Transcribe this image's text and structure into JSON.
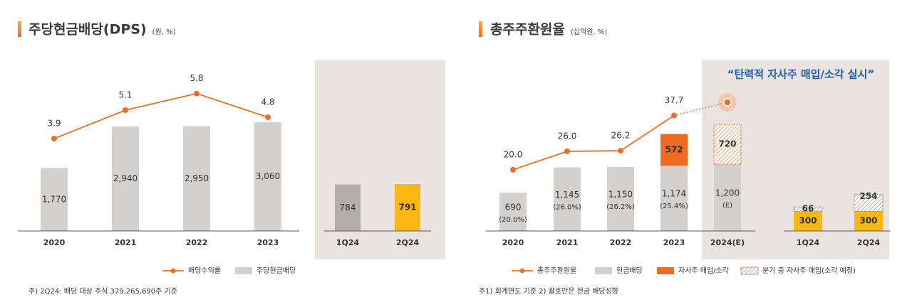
{
  "chart_data": [
    {
      "type": "bar",
      "title": "주당현금배당(DPS)",
      "unit": "(원, %)",
      "categories": [
        "2020",
        "2021",
        "2022",
        "2023"
      ],
      "ylim": [
        0,
        5000
      ],
      "y2lim": [
        0,
        7.5
      ],
      "series": [
        {
          "name": "배당수익률",
          "type": "line",
          "axis": "y2",
          "color": "#e8702a",
          "values": [
            3.9,
            5.1,
            5.8,
            4.8
          ]
        },
        {
          "name": "주당현금배당",
          "color": "#d3d0cd",
          "values": [
            1770,
            2940,
            2950,
            3060
          ],
          "value_labels": [
            "1,770",
            "2,940",
            "2,950",
            "3,060"
          ]
        }
      ],
      "quarter": {
        "categories": [
          "1Q24",
          "2Q24"
        ],
        "ylim": [
          0,
          3000
        ],
        "series": [
          {
            "values": [
              784,
              791
            ],
            "value_labels": [
              "784",
              "791"
            ],
            "colors": [
              "#b3aea9",
              "#fbb812"
            ]
          }
        ]
      },
      "footnote": "주) 2Q24: 배당 대상 주식 379,265,690주 기준"
    },
    {
      "type": "bar",
      "title": "총주주환원율",
      "unit": "(십억원, %)",
      "annotation": "“탄력적 자사주 매입/소각 실시”",
      "categories": [
        "2020",
        "2021",
        "2022",
        "2023",
        "2024(E)"
      ],
      "ylim": [
        0,
        3200
      ],
      "y2lim": [
        0,
        58
      ],
      "series": [
        {
          "name": "총주주환원율",
          "type": "line",
          "axis": "y2",
          "color": "#e8702a",
          "dotted_from": 3,
          "values": [
            20,
            26,
            26.2,
            37.7,
            42
          ],
          "value_labels": [
            "20.0",
            "26.0",
            "26.2",
            "37.7",
            null
          ]
        },
        {
          "name": "현금배당",
          "color": "#d3d0cd",
          "values": [
            690,
            1145,
            1150,
            1174,
            1200
          ],
          "value_labels": [
            "690",
            "1,145",
            "1,150",
            "1,174",
            "1,200"
          ],
          "sublabels": [
            "(20.0%)",
            "(26.0%)",
            "(26.2%)",
            "(25.4%)",
            "(E)"
          ]
        },
        {
          "name": "자사주 매입/소각",
          "color": "#ee6b22",
          "values": [
            null,
            null,
            null,
            572,
            null
          ]
        },
        {
          "name": "분기 중 자사주 매입(소각 예정)",
          "color": "#e8702a",
          "pattern": "hatch",
          "values": [
            null,
            null,
            null,
            null,
            720
          ]
        }
      ],
      "quarter": {
        "categories": [
          "1Q24",
          "2Q24"
        ],
        "ylim": [
          0,
          2700
        ],
        "series": [
          {
            "color": "#fbb812",
            "values": [
              300,
              300
            ]
          },
          {
            "color": "#8a8580",
            "pattern": "hatch",
            "values": [
              66,
              254
            ]
          }
        ]
      },
      "footnote": "주1) 회계연도 기준    2) 괄호안은 현금 배당성향"
    }
  ]
}
